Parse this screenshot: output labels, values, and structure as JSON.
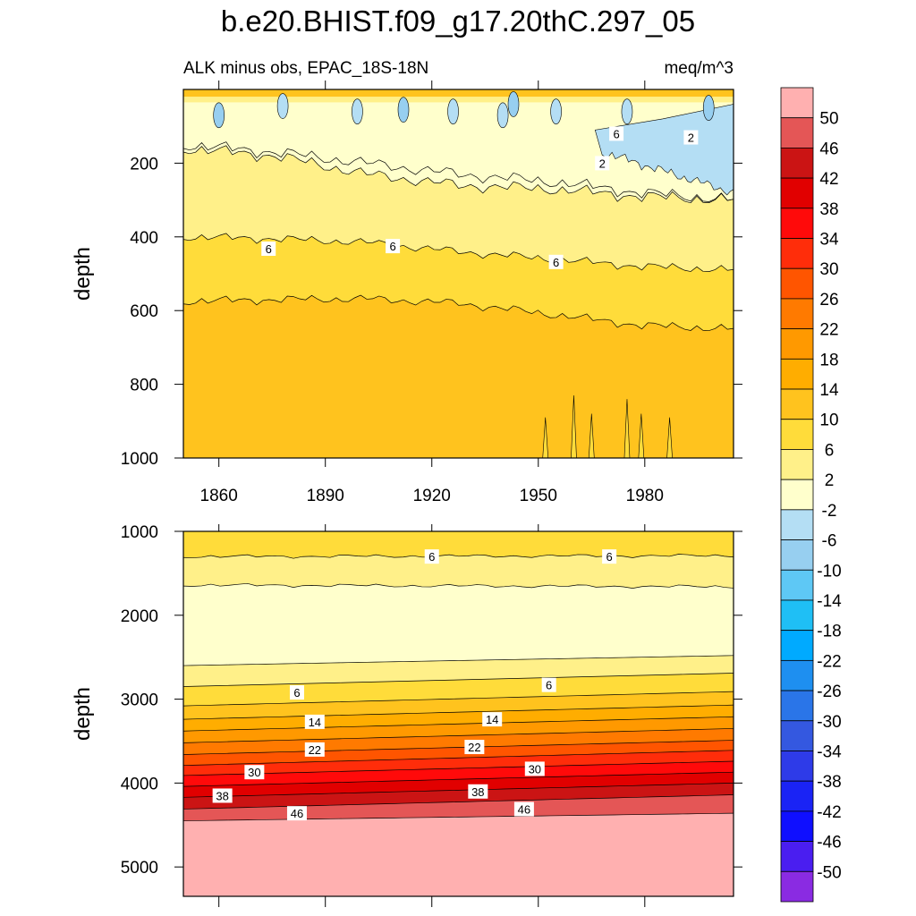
{
  "chart_data": [
    {
      "type": "heatmap",
      "title": "b.e20.BHIST.f09_g17.20thC.297_05",
      "subtitle_left": "ALK minus obs, EPAC_18S-18N",
      "subtitle_right": "meq/m^3",
      "ylabel": "depth",
      "xlabel": "",
      "xlim": [
        1850,
        2005
      ],
      "ylim": [
        0,
        1000
      ],
      "y_inverted": true,
      "x_ticks": [
        1860,
        1890,
        1920,
        1950,
        1980
      ],
      "y_ticks": [
        200,
        400,
        600,
        800,
        1000
      ],
      "contour_interval": 4,
      "contour_boundaries": [
        {
          "level": -2,
          "depth": [
            150,
            170,
            200,
            230,
            250,
            280,
            300
          ]
        },
        {
          "level": 2,
          "depth": [
            160,
            180,
            230,
            260,
            270,
            290,
            300
          ]
        },
        {
          "level": 6,
          "depth": [
            400,
            405,
            415,
            440,
            460,
            480,
            490
          ]
        },
        {
          "level": 10,
          "depth": [
            575,
            570,
            568,
            580,
            610,
            640,
            650
          ]
        }
      ],
      "contour_labels": [
        {
          "text": "6",
          "x": 1874,
          "y": 432
        },
        {
          "text": "6",
          "x": 1909,
          "y": 425
        },
        {
          "text": "6",
          "x": 1955,
          "y": 468
        },
        {
          "text": "6",
          "x": 1972,
          "y": 120
        },
        {
          "text": "2",
          "x": 1993,
          "y": 130
        },
        {
          "text": "2",
          "x": 1968,
          "y": 200
        }
      ]
    },
    {
      "type": "heatmap",
      "ylabel": "depth",
      "xlim": [
        1850,
        2005
      ],
      "ylim": [
        1000,
        5350
      ],
      "y_inverted": true,
      "y_ticks": [
        1000,
        2000,
        3000,
        4000,
        5000
      ],
      "contour_boundaries": [
        {
          "level": 6,
          "start_depth": 1000,
          "end_depth": 1000
        },
        {
          "level": 2,
          "start_depth": 1300,
          "end_depth": 1290
        },
        {
          "level": -2,
          "start_depth": 1640,
          "end_depth": 1660
        },
        {
          "level": 2,
          "start_depth": 2600,
          "end_depth": 2480
        },
        {
          "level": 6,
          "start_depth": 2850,
          "end_depth": 2690
        },
        {
          "level": 10,
          "start_depth": 3080,
          "end_depth": 2910
        },
        {
          "level": 14,
          "start_depth": 3240,
          "end_depth": 3070
        },
        {
          "level": 18,
          "start_depth": 3380,
          "end_depth": 3210
        },
        {
          "level": 22,
          "start_depth": 3520,
          "end_depth": 3350
        },
        {
          "level": 26,
          "start_depth": 3660,
          "end_depth": 3490
        },
        {
          "level": 30,
          "start_depth": 3790,
          "end_depth": 3610
        },
        {
          "level": 34,
          "start_depth": 3910,
          "end_depth": 3740
        },
        {
          "level": 38,
          "start_depth": 4040,
          "end_depth": 3870
        },
        {
          "level": 42,
          "start_depth": 4170,
          "end_depth": 4000
        },
        {
          "level": 46,
          "start_depth": 4310,
          "end_depth": 4140
        },
        {
          "level": 50,
          "start_depth": 4450,
          "end_depth": 4360
        }
      ],
      "contour_labels": [
        {
          "text": "6",
          "x": 1920,
          "y": 1300
        },
        {
          "text": "6",
          "x": 1970,
          "y": 1300
        },
        {
          "text": "6",
          "x": 1882,
          "y": 2920
        },
        {
          "text": "6",
          "x": 1953,
          "y": 2830
        },
        {
          "text": "14",
          "x": 1887,
          "y": 3270
        },
        {
          "text": "14",
          "x": 1937,
          "y": 3240
        },
        {
          "text": "22",
          "x": 1887,
          "y": 3600
        },
        {
          "text": "22",
          "x": 1932,
          "y": 3570
        },
        {
          "text": "30",
          "x": 1870,
          "y": 3870
        },
        {
          "text": "30",
          "x": 1949,
          "y": 3830
        },
        {
          "text": "38",
          "x": 1861,
          "y": 4150
        },
        {
          "text": "38",
          "x": 1933,
          "y": 4100
        },
        {
          "text": "46",
          "x": 1882,
          "y": 4360
        },
        {
          "text": "46",
          "x": 1946,
          "y": 4310
        }
      ]
    }
  ],
  "colorbar": {
    "labels": [
      "50",
      "46",
      "42",
      "38",
      "34",
      "30",
      "26",
      "22",
      "18",
      "14",
      "10",
      "6",
      "2",
      "-2",
      "-6",
      "-10",
      "-14",
      "-18",
      "-22",
      "-26",
      "-30",
      "-34",
      "-38",
      "-42",
      "-46",
      "-50"
    ],
    "colors": [
      "#ffb0b0",
      "#e45656",
      "#cb1414",
      "#e10000",
      "#ff0a0a",
      "#ff2d0a",
      "#ff5500",
      "#ff7a00",
      "#ff9900",
      "#ffad00",
      "#ffc31e",
      "#ffdc3a",
      "#fff089",
      "#ffffcc",
      "#b4def4",
      "#97cff0",
      "#5ec8f5",
      "#1fbff5",
      "#00aaff",
      "#1e8ff0",
      "#2a75e8",
      "#3458e0",
      "#2e3be8",
      "#1a23f5",
      "#0f0fff",
      "#4a1ef0",
      "#8a2be2"
    ]
  }
}
